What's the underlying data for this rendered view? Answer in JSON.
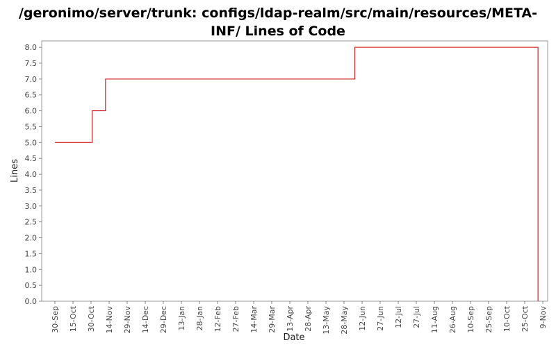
{
  "chart_data": {
    "type": "line",
    "step": true,
    "title_line1": "/geronimo/server/trunk: configs/ldap-realm/src/main/resources/META-",
    "title_line2": "INF/ Lines of Code",
    "xlabel": "Date",
    "ylabel": "Lines",
    "ylim": [
      0,
      8.2
    ],
    "yticks": [
      "0.0",
      "0.5",
      "1.0",
      "1.5",
      "2.0",
      "2.5",
      "3.0",
      "3.5",
      "4.0",
      "4.5",
      "5.0",
      "5.5",
      "6.0",
      "6.5",
      "7.0",
      "7.5",
      "8.0"
    ],
    "xticks": [
      "30-Sep",
      "15-Oct",
      "30-Oct",
      "14-Nov",
      "29-Nov",
      "14-Dec",
      "29-Dec",
      "13-Jan",
      "28-Jan",
      "12-Feb",
      "27-Feb",
      "14-Mar",
      "29-Mar",
      "13-Apr",
      "28-Apr",
      "13-May",
      "28-May",
      "12-Jun",
      "27-Jun",
      "12-Jul",
      "27-Jul",
      "11-Aug",
      "26-Aug",
      "10-Sep",
      "25-Sep",
      "10-Oct",
      "25-Oct",
      "9-Nov"
    ],
    "grid": false,
    "series": [
      {
        "color": "#cc0000",
        "points": [
          {
            "x": "2006-09-30",
            "y": 5
          },
          {
            "x": "2006-10-31",
            "y": 5
          },
          {
            "x": "2006-10-31",
            "y": 6
          },
          {
            "x": "2006-11-11",
            "y": 6
          },
          {
            "x": "2006-11-11",
            "y": 7
          },
          {
            "x": "2007-06-06",
            "y": 7
          },
          {
            "x": "2007-06-06",
            "y": 8
          },
          {
            "x": "2007-11-05",
            "y": 8
          },
          {
            "x": "2007-11-05",
            "y": 0
          }
        ]
      }
    ]
  }
}
